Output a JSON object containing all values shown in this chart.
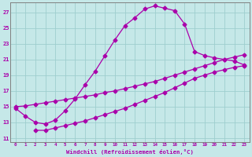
{
  "xlabel": "Windchill (Refroidissement éolien,°C)",
  "bg_color": "#c5e8e8",
  "grid_color": "#9ecece",
  "line_color": "#aa00aa",
  "xlim": [
    -0.5,
    23.5
  ],
  "ylim": [
    10.5,
    28.2
  ],
  "xticks": [
    0,
    1,
    2,
    3,
    4,
    5,
    6,
    7,
    8,
    9,
    10,
    11,
    12,
    13,
    14,
    15,
    16,
    17,
    18,
    19,
    20,
    21,
    22,
    23
  ],
  "yticks": [
    11,
    13,
    15,
    17,
    19,
    21,
    23,
    25,
    27
  ],
  "line1_x": [
    0,
    1,
    2,
    3,
    4,
    5,
    6,
    7,
    8,
    9,
    10,
    11,
    12,
    13,
    14,
    15,
    16,
    17,
    18,
    19,
    20,
    21,
    22,
    23
  ],
  "line1_y": [
    14.8,
    13.8,
    13.0,
    12.8,
    13.3,
    14.5,
    16.0,
    17.8,
    19.5,
    21.5,
    23.5,
    25.3,
    26.3,
    27.4,
    27.8,
    27.5,
    27.2,
    25.5,
    22.0,
    21.5,
    21.2,
    21.0,
    20.8,
    20.3
  ],
  "line2_x": [
    0,
    1,
    2,
    3,
    4,
    5,
    6,
    7,
    8,
    9,
    10,
    11,
    12,
    13,
    14,
    15,
    16,
    17,
    18,
    19,
    20,
    21,
    22,
    23
  ],
  "line2_y": [
    15.0,
    15.1,
    15.3,
    15.5,
    15.7,
    15.9,
    16.1,
    16.3,
    16.5,
    16.8,
    17.0,
    17.3,
    17.6,
    17.9,
    18.2,
    18.6,
    19.0,
    19.4,
    19.8,
    20.2,
    20.6,
    21.0,
    21.3,
    21.6
  ],
  "line3_x": [
    2,
    3,
    4,
    5,
    6,
    7,
    8,
    9,
    10,
    11,
    12,
    13,
    14,
    15,
    16,
    17,
    18,
    19,
    20,
    21,
    22,
    23
  ],
  "line3_y": [
    12.0,
    12.0,
    12.3,
    12.6,
    12.9,
    13.2,
    13.6,
    14.0,
    14.4,
    14.8,
    15.3,
    15.8,
    16.3,
    16.8,
    17.4,
    18.0,
    18.6,
    19.0,
    19.4,
    19.7,
    20.0,
    20.2
  ],
  "markersize": 2.5,
  "linewidth": 0.9
}
